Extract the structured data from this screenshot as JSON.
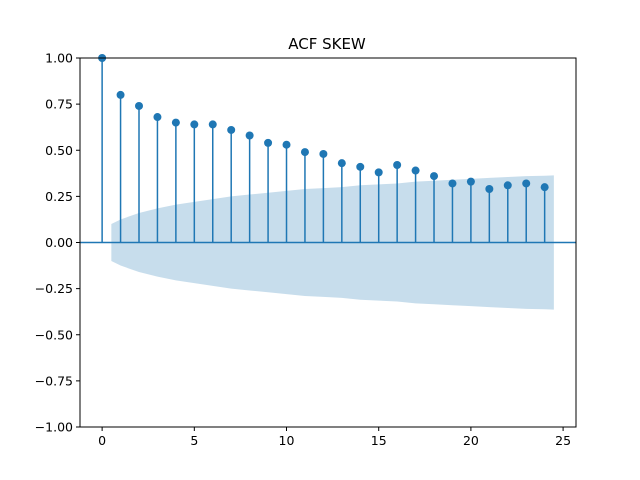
{
  "chart_data": {
    "type": "stem",
    "title": "ACF SKEW",
    "xlabel": "",
    "ylabel": "",
    "xlim": [
      -1.2,
      25.7
    ],
    "ylim": [
      -1.0,
      1.0
    ],
    "xticks": [
      0,
      5,
      10,
      15,
      20,
      25
    ],
    "yticks": [
      -1.0,
      -0.75,
      -0.5,
      -0.25,
      0.0,
      0.25,
      0.5,
      0.75,
      1.0
    ],
    "xtick_labels": [
      "0",
      "5",
      "10",
      "15",
      "20",
      "25"
    ],
    "ytick_labels": [
      "−1.00",
      "−0.75",
      "−0.50",
      "−0.25",
      "0.00",
      "0.25",
      "0.50",
      "0.75",
      "1.00"
    ],
    "lags": [
      0,
      1,
      2,
      3,
      4,
      5,
      6,
      7,
      8,
      9,
      10,
      11,
      12,
      13,
      14,
      15,
      16,
      17,
      18,
      19,
      20,
      21,
      22,
      23,
      24
    ],
    "acf": [
      1.0,
      0.8,
      0.74,
      0.68,
      0.65,
      0.64,
      0.64,
      0.61,
      0.58,
      0.54,
      0.53,
      0.49,
      0.48,
      0.43,
      0.41,
      0.38,
      0.42,
      0.39,
      0.36,
      0.32,
      0.33,
      0.29,
      0.31,
      0.32,
      0.3
    ],
    "confidence_band": {
      "x": [
        0.5,
        1,
        2,
        3,
        4,
        5,
        6,
        7,
        8,
        9,
        10,
        11,
        12,
        13,
        14,
        15,
        16,
        17,
        18,
        19,
        20,
        21,
        22,
        23,
        24,
        24.5
      ],
      "upper": [
        0.1,
        0.125,
        0.16,
        0.185,
        0.205,
        0.22,
        0.235,
        0.25,
        0.26,
        0.27,
        0.28,
        0.29,
        0.295,
        0.3,
        0.31,
        0.315,
        0.32,
        0.33,
        0.335,
        0.34,
        0.345,
        0.35,
        0.355,
        0.36,
        0.362,
        0.364
      ]
    },
    "colors": {
      "stem": "#1f77b4",
      "band": "#1f77b4",
      "band_opacity": 0.25
    },
    "grid": false,
    "legend": "none"
  }
}
